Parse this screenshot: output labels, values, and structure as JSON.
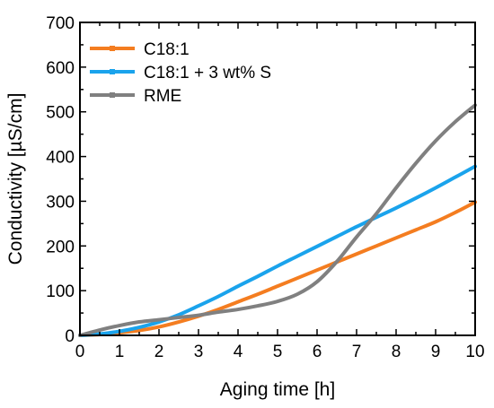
{
  "chart_data": {
    "type": "line",
    "xlabel": "Aging time [h]",
    "ylabel": "Conductivity [µS/cm]",
    "xlim": [
      0,
      10
    ],
    "ylim": [
      0,
      700
    ],
    "xticks": [
      0,
      1,
      2,
      3,
      4,
      5,
      6,
      7,
      8,
      9,
      10
    ],
    "yticks": [
      0,
      100,
      200,
      300,
      400,
      500,
      600,
      700
    ],
    "grid": false,
    "legend_position": "top-left",
    "series": [
      {
        "name": "C18:1",
        "color": "#f47d20",
        "x": [
          0,
          0.5,
          1,
          1.5,
          2,
          2.5,
          3,
          3.5,
          4,
          4.5,
          5,
          5.5,
          6,
          6.5,
          7,
          7.5,
          8,
          8.5,
          9,
          9.5,
          10
        ],
        "y": [
          0,
          2,
          6,
          11,
          19,
          30,
          43,
          58,
          75,
          92,
          110,
          128,
          146,
          164,
          182,
          200,
          218,
          236,
          254,
          275,
          298
        ]
      },
      {
        "name": "C18:1 + 3 wt% S",
        "color": "#1aa3ec",
        "x": [
          0,
          0.5,
          1,
          1.5,
          2,
          2.5,
          3,
          3.5,
          4,
          4.5,
          5,
          5.5,
          6,
          6.5,
          7,
          7.5,
          8,
          8.5,
          9,
          9.5,
          10
        ],
        "y": [
          0,
          3,
          9,
          18,
          30,
          46,
          66,
          87,
          110,
          132,
          155,
          177,
          199,
          221,
          243,
          264,
          285,
          307,
          330,
          354,
          378
        ]
      },
      {
        "name": "RME",
        "color": "#808080",
        "x": [
          0,
          0.5,
          1,
          1.5,
          2,
          2.5,
          3,
          3.5,
          4,
          4.5,
          5,
          5.5,
          6,
          6.5,
          7,
          7.5,
          8,
          8.5,
          9,
          9.5,
          10
        ],
        "y": [
          0,
          12,
          22,
          30,
          35,
          40,
          45,
          52,
          58,
          66,
          76,
          92,
          120,
          165,
          220,
          272,
          330,
          385,
          435,
          478,
          515
        ]
      }
    ]
  }
}
